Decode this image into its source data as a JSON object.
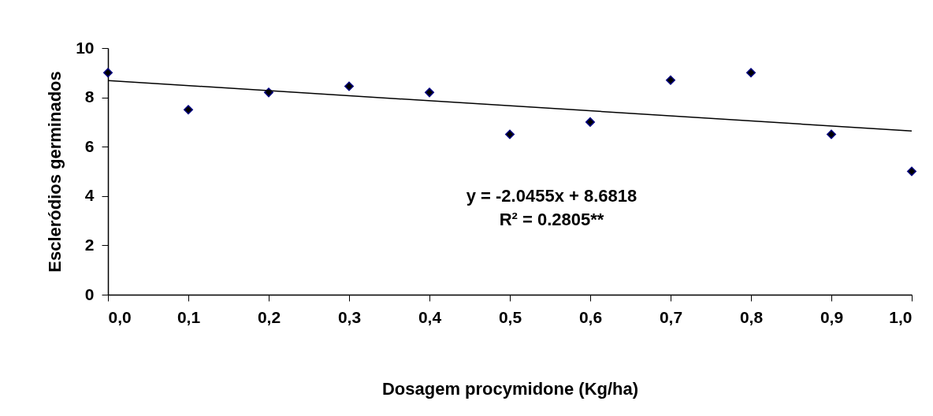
{
  "chart_data": {
    "type": "scatter",
    "xlabel": "Dosagem procymidone (Kg/ha)",
    "ylabel": "Escleródios germinados",
    "x": [
      0,
      0.1,
      0.2,
      0.3,
      0.4,
      0.5,
      0.6,
      0.7,
      0.8,
      0.9,
      1.0
    ],
    "series": [
      {
        "type": "scatter",
        "color": "#000000",
        "marker": "diamond",
        "values": [
          9.0,
          7.5,
          8.2,
          8.45,
          8.2,
          6.5,
          7.0,
          8.7,
          9.0,
          6.5,
          5.0
        ]
      },
      {
        "type": "line",
        "color": "#000000",
        "marker": "none",
        "x": [
          0,
          1
        ],
        "values": [
          8.6818,
          6.6363
        ]
      }
    ],
    "xlim": [
      0,
      1
    ],
    "xticks": [
      {
        "value": 0,
        "label": "0,0"
      },
      {
        "value": 0.1,
        "label": "0,1"
      },
      {
        "value": 0.2,
        "label": "0,2"
      },
      {
        "value": 0.3,
        "label": "0,3"
      },
      {
        "value": 0.4,
        "label": "0,4"
      },
      {
        "value": 0.5,
        "label": "0,5"
      },
      {
        "value": 0.6,
        "label": "0,6"
      },
      {
        "value": 0.7,
        "label": "0,7"
      },
      {
        "value": 0.8,
        "label": "0,8"
      },
      {
        "value": 0.9,
        "label": "0,9"
      },
      {
        "value": 1,
        "label": "1,0"
      }
    ],
    "ylim": [
      0,
      10
    ],
    "yticks": [
      0,
      2,
      4,
      6,
      8,
      10
    ],
    "annotations": [
      "y = -2.0455x + 8.6818",
      "R² = 0.2805**"
    ],
    "grid": false
  }
}
